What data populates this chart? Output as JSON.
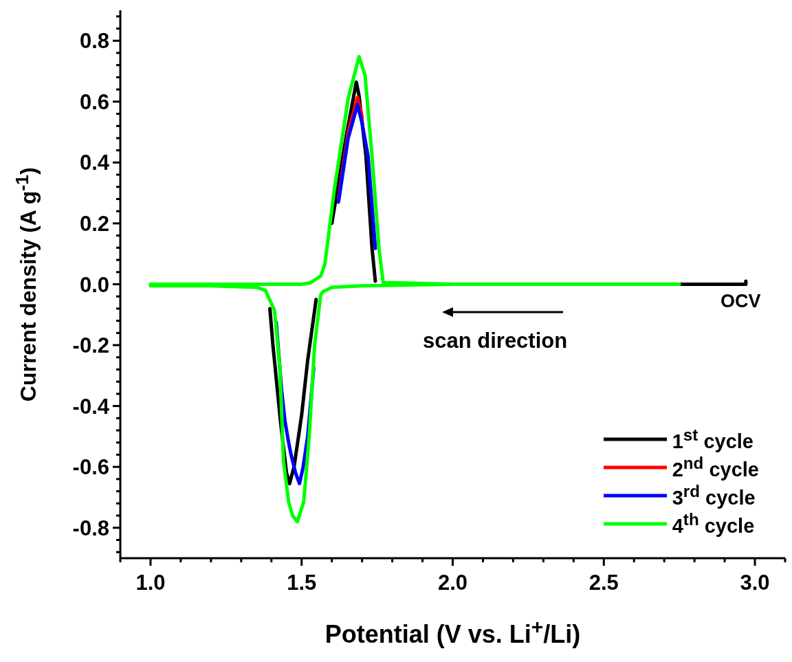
{
  "chart_data": {
    "type": "line",
    "xlabel": "Potential (V vs. Li$^{+}$/Li)",
    "ylabel": "Current density (A g$^{-1}$)",
    "xlim": [
      0.9,
      3.1
    ],
    "xticks": [
      {
        "value": 0.9,
        "label": null
      },
      {
        "value": 1,
        "label": "1.0"
      },
      {
        "value": 1.1,
        "label": null
      },
      {
        "value": 1.2,
        "label": null
      },
      {
        "value": 1.3,
        "label": null
      },
      {
        "value": 1.4,
        "label": null
      },
      {
        "value": 1.5,
        "label": "1.5"
      },
      {
        "value": 1.6,
        "label": null
      },
      {
        "value": 1.7,
        "label": null
      },
      {
        "value": 1.8,
        "label": null
      },
      {
        "value": 1.9,
        "label": null
      },
      {
        "value": 2,
        "label": "2.0"
      },
      {
        "value": 2.1,
        "label": null
      },
      {
        "value": 2.2,
        "label": null
      },
      {
        "value": 2.3,
        "label": null
      },
      {
        "value": 2.4,
        "label": null
      },
      {
        "value": 2.5,
        "label": "2.5"
      },
      {
        "value": 2.6,
        "label": null
      },
      {
        "value": 2.7,
        "label": null
      },
      {
        "value": 2.8,
        "label": null
      },
      {
        "value": 2.9,
        "label": null
      },
      {
        "value": 3,
        "label": "3.0"
      },
      {
        "value": 3.1,
        "label": null
      }
    ],
    "ylim": [
      -0.9,
      0.9
    ],
    "yticks": [
      {
        "value": -0.88,
        "label": null
      },
      {
        "value": -0.84,
        "label": null
      },
      {
        "value": -0.8,
        "label": "-0.8"
      },
      {
        "value": -0.76,
        "label": null
      },
      {
        "value": -0.72,
        "label": null
      },
      {
        "value": -0.68,
        "label": null
      },
      {
        "value": -0.64,
        "label": null
      },
      {
        "value": -0.6,
        "label": "-0.6"
      },
      {
        "value": -0.56,
        "label": null
      },
      {
        "value": -0.52,
        "label": null
      },
      {
        "value": -0.48,
        "label": null
      },
      {
        "value": -0.44,
        "label": null
      },
      {
        "value": -0.4,
        "label": "-0.4"
      },
      {
        "value": -0.36,
        "label": null
      },
      {
        "value": -0.32,
        "label": null
      },
      {
        "value": -0.28,
        "label": null
      },
      {
        "value": -0.24,
        "label": null
      },
      {
        "value": -0.2,
        "label": "-0.2"
      },
      {
        "value": -0.16,
        "label": null
      },
      {
        "value": -0.12,
        "label": null
      },
      {
        "value": -0.08,
        "label": null
      },
      {
        "value": -0.04,
        "label": null
      },
      {
        "value": 0,
        "label": "0.0"
      },
      {
        "value": 0.04,
        "label": null
      },
      {
        "value": 0.08,
        "label": null
      },
      {
        "value": 0.12,
        "label": null
      },
      {
        "value": 0.16,
        "label": null
      },
      {
        "value": 0.2,
        "label": "0.2"
      },
      {
        "value": 0.24,
        "label": null
      },
      {
        "value": 0.28,
        "label": null
      },
      {
        "value": 0.32,
        "label": null
      },
      {
        "value": 0.36,
        "label": null
      },
      {
        "value": 0.4,
        "label": "0.4"
      },
      {
        "value": 0.44,
        "label": null
      },
      {
        "value": 0.48,
        "label": null
      },
      {
        "value": 0.52,
        "label": null
      },
      {
        "value": 0.56,
        "label": null
      },
      {
        "value": 0.6,
        "label": "0.6"
      },
      {
        "value": 0.64,
        "label": null
      },
      {
        "value": 0.68,
        "label": null
      },
      {
        "value": 0.72,
        "label": null
      },
      {
        "value": 0.76,
        "label": null
      },
      {
        "value": 0.8,
        "label": "0.8"
      },
      {
        "value": 0.84,
        "label": null
      },
      {
        "value": 0.88,
        "label": null
      }
    ],
    "legend": "bottom right",
    "marker": "none",
    "line_style": "solid",
    "annotations": [
      "OCV",
      "scan direction"
    ],
    "series": [
      {
        "name": "1$^{st}$ cycle",
        "color": "#000000",
        "x": [
          2.97,
          2.97,
          2.75,
          null,
          1.548,
          1.52,
          1.5,
          1.475,
          1.46,
          1.45,
          1.43,
          1.415,
          1.405,
          1.395,
          null,
          1.6,
          1.62,
          1.65,
          1.681,
          1.69,
          1.713,
          1.733,
          1.744
        ],
        "values": [
          0.01,
          0,
          0,
          null,
          -0.05,
          -0.25,
          -0.43,
          -0.6,
          -0.655,
          -0.62,
          -0.45,
          -0.3,
          -0.2,
          -0.08,
          null,
          0.2,
          0.32,
          0.5,
          0.664,
          0.62,
          0.42,
          0.118,
          0.01
        ]
      },
      {
        "name": "2$^{nd}$ cycle",
        "color": "#ff0000",
        "x": [
          1.622,
          1.654,
          1.685,
          1.7
        ],
        "values": [
          0.28,
          0.5,
          0.614,
          0.55
        ]
      },
      {
        "name": "3$^{rd}$ cycle",
        "color": "#0000ff",
        "x": [
          1.54,
          1.52,
          1.505,
          1.493,
          1.48,
          1.465,
          1.457,
          1.445,
          1.434,
          1.416,
          null,
          1.622,
          1.654,
          1.685,
          1.7,
          1.72,
          1.744
        ],
        "values": [
          -0.275,
          -0.5,
          -0.6,
          -0.655,
          -0.62,
          -0.56,
          -0.52,
          -0.45,
          -0.35,
          -0.125,
          null,
          0.27,
          0.48,
          0.59,
          0.53,
          0.42,
          0.118
        ]
      },
      {
        "name": "4$^{th}$ cycle",
        "color": "#00ff00",
        "x": [
          2.75,
          2,
          1.7,
          1.6,
          1.57,
          1.563,
          1.543,
          1.525,
          1.507,
          1.486,
          1.47,
          1.457,
          1.44,
          1.428,
          1.41,
          1.38,
          1.35,
          1.2,
          1,
          null,
          1,
          1.2,
          1.4,
          1.5,
          1.53,
          1.563,
          1.577,
          1.608,
          1.654,
          1.69,
          1.71,
          1.733,
          1.756,
          1.77,
          1.8,
          2,
          2.75
        ],
        "values": [
          0,
          0,
          -0.005,
          -0.01,
          -0.025,
          -0.035,
          -0.2,
          -0.5,
          -0.715,
          -0.78,
          -0.76,
          -0.715,
          -0.58,
          -0.275,
          -0.085,
          -0.02,
          -0.01,
          -0.005,
          -0.005,
          null,
          0,
          0,
          0,
          0,
          0.005,
          0.027,
          0.066,
          0.31,
          0.61,
          0.748,
          0.686,
          0.42,
          0.118,
          0.005,
          0.005,
          0,
          0
        ]
      }
    ]
  }
}
